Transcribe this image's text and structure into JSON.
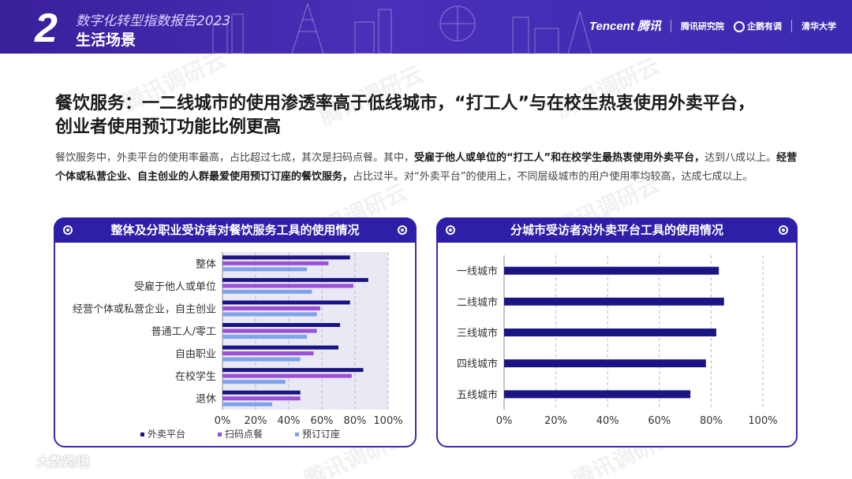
{
  "header": {
    "chapter_number": "2",
    "report_title": "数字化转型指数报告2023",
    "section_title": "生活场景",
    "logo_tencent": "Tencent 腾讯",
    "logo_research": "腾讯研究院",
    "logo_survey": "企鹅有调",
    "logo_university": "清华大学"
  },
  "watermark_text": "腾讯调研云",
  "headline": {
    "line1": "餐饮服务：一二线城市的使用渗透率高于低线城市，“打工人”与在校生热衷使用外卖平台，",
    "line2": "创业者使用预订功能比例更高"
  },
  "body": {
    "p1": "餐饮服务中，外卖平台的使用率最高，占比超过七成，其次是扫码点餐。其中，",
    "b1": "受雇于他人或单位的“打工人”和在校学生最热衷使用外卖平台，",
    "p2": "达到八成以上。",
    "b2": "经营个体或私营企业、自主创业的人群最爱使用预订订座的餐饮服务，",
    "p3": "占比过半。对“外卖平台”的使用上，不同层级城市的用户使用率均较高，达成七成以上。"
  },
  "brand": {
    "label": "大数跨境"
  },
  "chart_data": [
    {
      "type": "bar",
      "orientation": "horizontal",
      "title": "整体及分职业受访者对餐饮服务工具的使用情况",
      "categories": [
        "整体",
        "受雇于他人或单位",
        "经营个体或私营企业，自主创业",
        "普通工人/零工",
        "自由职业",
        "在校学生",
        "退休"
      ],
      "series": [
        {
          "name": "外卖平台",
          "color": "#1b1583",
          "values": [
            77,
            88,
            77,
            71,
            70,
            85,
            47
          ]
        },
        {
          "name": "扫码点餐",
          "color": "#9b4fd6",
          "values": [
            64,
            79,
            59,
            57,
            55,
            78,
            47
          ]
        },
        {
          "name": "预订订座",
          "color": "#7fa2e8",
          "values": [
            51,
            54,
            57,
            51,
            47,
            38,
            30
          ]
        }
      ],
      "xlim": [
        0,
        100
      ],
      "xticks": [
        "0%",
        "20%",
        "40%",
        "60%",
        "80%",
        "100%"
      ],
      "grid": true,
      "legend_position": "bottom"
    },
    {
      "type": "bar",
      "orientation": "horizontal",
      "title": "分城市受访者对外卖平台工具的使用情况",
      "categories": [
        "一线城市",
        "二线城市",
        "三线城市",
        "四线城市",
        "五线城市"
      ],
      "series": [
        {
          "color": "#1b1583",
          "values": [
            83,
            85,
            82,
            78,
            72
          ]
        }
      ],
      "xlim": [
        0,
        100
      ],
      "xticks": [
        "0%",
        "20%",
        "40%",
        "60%",
        "80%",
        "100%"
      ],
      "grid": true
    }
  ]
}
